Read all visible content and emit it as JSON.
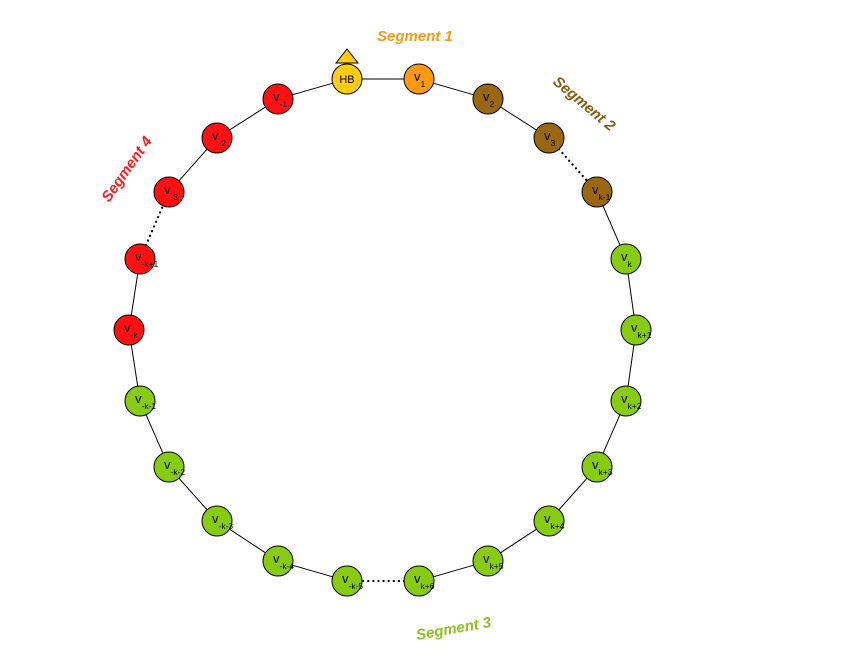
{
  "colors": {
    "hb": "#ffcc11",
    "segment1": "#ff9911",
    "segment2": "#996611",
    "segment3": "#88cc11",
    "segment4": "#ff1111",
    "edge": "#000000",
    "node_stroke": "#000000"
  },
  "segments": [
    {
      "label": "Segment 1",
      "color": "#f59a16"
    },
    {
      "label": "Segment 2",
      "color": "#8c5a10"
    },
    {
      "label": "Segment 3",
      "color": "#8dc21f"
    },
    {
      "label": "Segment 4",
      "color": "#ff1a1a"
    }
  ],
  "head": {
    "label": "HB",
    "marker": "triangle-up",
    "color": "#ffcc11"
  },
  "nodes": [
    {
      "id": "v1",
      "main": "v",
      "sub": "1",
      "segment": 1
    },
    {
      "id": "v2",
      "main": "v",
      "sub": "2",
      "segment": 2
    },
    {
      "id": "v3",
      "main": "v",
      "sub": "3",
      "segment": 2
    },
    {
      "id": "vk-1",
      "main": "v",
      "sub": "k-1",
      "segment": 2
    },
    {
      "id": "vk",
      "main": "v",
      "sub": "k",
      "segment": 3
    },
    {
      "id": "vk+1",
      "main": "v",
      "sub": "k+1",
      "segment": 3
    },
    {
      "id": "vk+2",
      "main": "v",
      "sub": "k+2",
      "segment": 3
    },
    {
      "id": "vk+3",
      "main": "v",
      "sub": "k+3",
      "segment": 3
    },
    {
      "id": "vk+4",
      "main": "v",
      "sub": "k+4",
      "segment": 3
    },
    {
      "id": "vk+5",
      "main": "v",
      "sub": "k+5",
      "segment": 3
    },
    {
      "id": "vk+6",
      "main": "v",
      "sub": "k+6",
      "segment": 3
    },
    {
      "id": "v-k-5",
      "main": "v",
      "sub": "-k-5",
      "segment": 3
    },
    {
      "id": "v-k-4",
      "main": "v",
      "sub": "-k-4",
      "segment": 3
    },
    {
      "id": "v-k-3",
      "main": "v",
      "sub": "-k-3",
      "segment": 3
    },
    {
      "id": "v-k-2",
      "main": "v",
      "sub": "-k-2",
      "segment": 3
    },
    {
      "id": "v-k-1",
      "main": "v",
      "sub": "-k-1",
      "segment": 3
    },
    {
      "id": "v-k",
      "main": "v",
      "sub": "-k",
      "segment": 4
    },
    {
      "id": "v-k+1",
      "main": "v",
      "sub": "-k+1",
      "segment": 4
    },
    {
      "id": "v-3",
      "main": "v",
      "sub": "-3",
      "segment": 4
    },
    {
      "id": "v-2",
      "main": "v",
      "sub": "-2",
      "segment": 4
    },
    {
      "id": "v-1",
      "main": "v",
      "sub": "-1",
      "segment": 4
    }
  ],
  "edges": [
    {
      "from": "hb",
      "to": "v1",
      "style": "solid"
    },
    {
      "from": "v1",
      "to": "v2",
      "style": "solid"
    },
    {
      "from": "v2",
      "to": "v3",
      "style": "solid"
    },
    {
      "from": "v3",
      "to": "vk-1",
      "style": "dotted"
    },
    {
      "from": "vk-1",
      "to": "vk",
      "style": "solid"
    },
    {
      "from": "vk",
      "to": "vk+1",
      "style": "solid"
    },
    {
      "from": "vk+1",
      "to": "vk+2",
      "style": "solid"
    },
    {
      "from": "vk+2",
      "to": "vk+3",
      "style": "solid"
    },
    {
      "from": "vk+3",
      "to": "vk+4",
      "style": "solid"
    },
    {
      "from": "vk+4",
      "to": "vk+5",
      "style": "solid"
    },
    {
      "from": "vk+5",
      "to": "vk+6",
      "style": "solid"
    },
    {
      "from": "vk+6",
      "to": "v-k-5",
      "style": "dotted"
    },
    {
      "from": "v-k-5",
      "to": "v-k-4",
      "style": "solid"
    },
    {
      "from": "v-k-4",
      "to": "v-k-3",
      "style": "solid"
    },
    {
      "from": "v-k-3",
      "to": "v-k-2",
      "style": "solid"
    },
    {
      "from": "v-k-2",
      "to": "v-k-1",
      "style": "solid"
    },
    {
      "from": "v-k-1",
      "to": "v-k",
      "style": "solid"
    },
    {
      "from": "v-k",
      "to": "v-k+1",
      "style": "solid"
    },
    {
      "from": "v-k+1",
      "to": "v-3",
      "style": "dotted"
    },
    {
      "from": "v-3",
      "to": "v-2",
      "style": "solid"
    },
    {
      "from": "v-2",
      "to": "v-1",
      "style": "solid"
    },
    {
      "from": "v-1",
      "to": "hb",
      "style": "solid"
    }
  ]
}
